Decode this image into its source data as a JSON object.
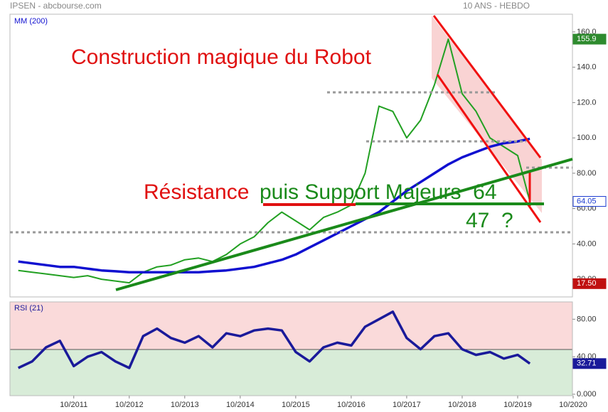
{
  "header": {
    "title": "IPSEN - abcbourse.com",
    "period": "10 ANS - HEBDO"
  },
  "annotations": [
    {
      "text": "Construction magique du Robot",
      "color": "#e01010"
    },
    {
      "text": "Résistance",
      "color": "#e01010"
    },
    {
      "text": "puis Support Majeurs  64",
      "color": "#1a8a1a"
    },
    {
      "text": "47  ?",
      "color": "#1a8a1a"
    }
  ],
  "chart_data": [
    {
      "type": "line",
      "x": [
        2010.75,
        2011,
        2011.25,
        2011.5,
        2011.75,
        2012,
        2012.25,
        2012.5,
        2012.75,
        2013,
        2013.25,
        2013.5,
        2013.75,
        2014,
        2014.25,
        2014.5,
        2014.75,
        2015,
        2015.25,
        2015.5,
        2015.75,
        2016,
        2016.25,
        2016.5,
        2016.75,
        2017,
        2017.25,
        2017.5,
        2017.75,
        2018,
        2018.25,
        2018.5,
        2018.75,
        2019,
        2019.25,
        2019.5,
        2019.75,
        2019.97
      ],
      "series": [
        {
          "color": "#22a022",
          "values": [
            25,
            24,
            23,
            22,
            21,
            22,
            20,
            19,
            18,
            24,
            27,
            28,
            31,
            32,
            30,
            34,
            40,
            44,
            52,
            58,
            53,
            48,
            55,
            58,
            62,
            80,
            118,
            115,
            100,
            110,
            130,
            155.9,
            125,
            115,
            100,
            95,
            90,
            64.05
          ]
        },
        {
          "name": "MM (200)",
          "color": "#1010d0",
          "values": [
            30,
            29,
            28,
            27,
            27,
            26,
            25,
            24.5,
            24,
            24,
            24,
            24,
            24,
            24,
            24.5,
            25,
            26,
            27,
            29,
            31,
            34,
            38,
            42,
            46,
            50,
            54,
            58,
            64,
            70,
            75,
            80,
            85,
            89,
            92,
            95,
            97,
            98,
            99.5
          ]
        }
      ],
      "xlim": [
        2010.6,
        2020.75
      ],
      "ylim": [
        12,
        168
      ],
      "yticks": [
        {
          "value": 160,
          "label": "160.0"
        },
        {
          "value": 140,
          "label": "140.0"
        },
        {
          "value": 120,
          "label": "120.0"
        },
        {
          "value": 100,
          "label": "100.0"
        },
        {
          "value": 80,
          "label": "80.00"
        },
        {
          "value": 60,
          "label": "60.00"
        },
        {
          "value": 40,
          "label": "40.00"
        },
        {
          "value": 20,
          "label": "20.00"
        }
      ],
      "tags": [
        {
          "value": 155.9,
          "label": "155.9",
          "color": "#2e8b2e"
        },
        {
          "value": 64.05,
          "label": "64.05",
          "color": "#1a3ad0"
        },
        {
          "value": 17.5,
          "label": "17.50",
          "color": "#c01010"
        }
      ]
    },
    {
      "type": "line",
      "x": [
        2010.75,
        2011,
        2011.25,
        2011.5,
        2011.75,
        2012,
        2012.25,
        2012.5,
        2012.75,
        2013,
        2013.25,
        2013.5,
        2013.75,
        2014,
        2014.25,
        2014.5,
        2014.75,
        2015,
        2015.25,
        2015.5,
        2015.75,
        2016,
        2016.25,
        2016.5,
        2016.75,
        2017,
        2017.25,
        2017.5,
        2017.75,
        2018,
        2018.25,
        2018.5,
        2018.75,
        2019,
        2019.25,
        2019.5,
        2019.75,
        2019.97
      ],
      "series": [
        {
          "name": "RSI (21)",
          "color": "#1a1a9a",
          "values": [
            28,
            35,
            50,
            57,
            30,
            40,
            45,
            35,
            28,
            62,
            70,
            60,
            55,
            62,
            50,
            65,
            62,
            68,
            70,
            68,
            45,
            35,
            50,
            55,
            52,
            72,
            80,
            88,
            60,
            48,
            62,
            65,
            48,
            42,
            45,
            38,
            42,
            32.71
          ]
        }
      ],
      "xlim": [
        2010.6,
        2020.75
      ],
      "ylim": [
        0,
        100
      ],
      "yticks": [
        {
          "value": 80,
          "label": "80.00"
        },
        {
          "value": 40,
          "label": "40.00"
        },
        {
          "value": 0,
          "label": "0.000"
        }
      ],
      "xticks": [
        {
          "value": 2011.75,
          "label": "10/2011"
        },
        {
          "value": 2012.75,
          "label": "10/2012"
        },
        {
          "value": 2013.75,
          "label": "10/2013"
        },
        {
          "value": 2014.75,
          "label": "10/2014"
        },
        {
          "value": 2015.75,
          "label": "10/2015"
        },
        {
          "value": 2016.75,
          "label": "10/2016"
        },
        {
          "value": 2017.75,
          "label": "10/2017"
        },
        {
          "value": 2018.75,
          "label": "10/2018"
        },
        {
          "value": 2019.75,
          "label": "10/2019"
        },
        {
          "value": 2020.75,
          "label": "10/2020"
        }
      ],
      "tags": [
        {
          "value": 32.71,
          "label": "32.71",
          "color": "#1a1a9a"
        }
      ]
    }
  ]
}
